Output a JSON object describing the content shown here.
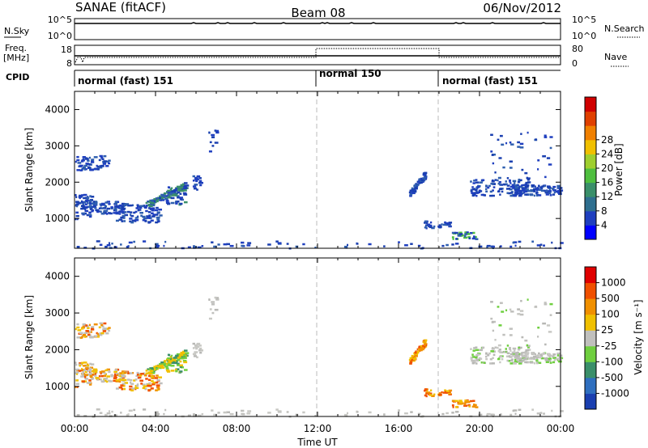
{
  "header": {
    "radar": "SANAE (fitACF)",
    "beam": "Beam 08",
    "date": "06/Nov/2012"
  },
  "panels": {
    "nsky_label": "N.Sky",
    "nsky_ticks": [
      "10^5",
      "10^0"
    ],
    "nsearch_label": "N.Search",
    "nsearch_ticks": [
      "10^5",
      "10^0"
    ],
    "freq_label": "Freq.",
    "freq_unit": "[MHz]",
    "freq_ticks": [
      "18",
      "8"
    ],
    "nave_label": "Nave",
    "nave_ticks": [
      "80",
      "0"
    ],
    "cpid_label": "CPID",
    "cpid_segments": [
      "normal (fast) 151",
      "normal 150",
      "normal (fast) 151"
    ]
  },
  "chart_data": [
    {
      "type": "heatmap",
      "quantity": "Power",
      "ylabel": "Slant Range [km]",
      "ylim": [
        180,
        4500
      ],
      "yticks": [
        "1000",
        "2000",
        "3000",
        "4000"
      ],
      "colorbar_label": "Power [dB]",
      "colorbar_ticks": [
        "4",
        "8",
        "12",
        "16",
        "20",
        "24",
        "28"
      ],
      "colorbar_colors": [
        "#0000ff",
        "#1f3fbf",
        "#2f6f8f",
        "#3a8f6a",
        "#4fbf3f",
        "#9fcf2f",
        "#f0c000",
        "#f08000",
        "#e04000",
        "#d00000"
      ],
      "scatter_regions": [
        {
          "t0": 0.0,
          "t1": 6.0,
          "r0": 800,
          "r1": 2000,
          "level": "low"
        },
        {
          "t0": 16.5,
          "t1": 17.3,
          "r0": 1500,
          "r1": 2300,
          "level": "low"
        },
        {
          "t0": 19.0,
          "t1": 24.0,
          "r0": 1500,
          "r1": 2300,
          "level": "low"
        }
      ]
    },
    {
      "type": "heatmap",
      "quantity": "Velocity",
      "ylabel": "Slant Range [km]",
      "ylim": [
        180,
        4500
      ],
      "xlabel": "Time UT",
      "xticks": [
        "00:00",
        "04:00",
        "08:00",
        "12:00",
        "16:00",
        "20:00",
        "00:00"
      ],
      "yticks": [
        "1000",
        "2000",
        "3000",
        "4000"
      ],
      "colorbar_label": "Velocity [m s⁻¹]",
      "colorbar_ticks": [
        "1000",
        "500",
        "100",
        "25",
        "-25",
        "-100",
        "-500",
        "-1000"
      ],
      "colorbar_colors": [
        "#1a3fb0",
        "#2f6fbf",
        "#3a8f6a",
        "#6fcf3f",
        "#c0c0bd",
        "#f0c000",
        "#f09000",
        "#f05000",
        "#e00000"
      ]
    }
  ]
}
